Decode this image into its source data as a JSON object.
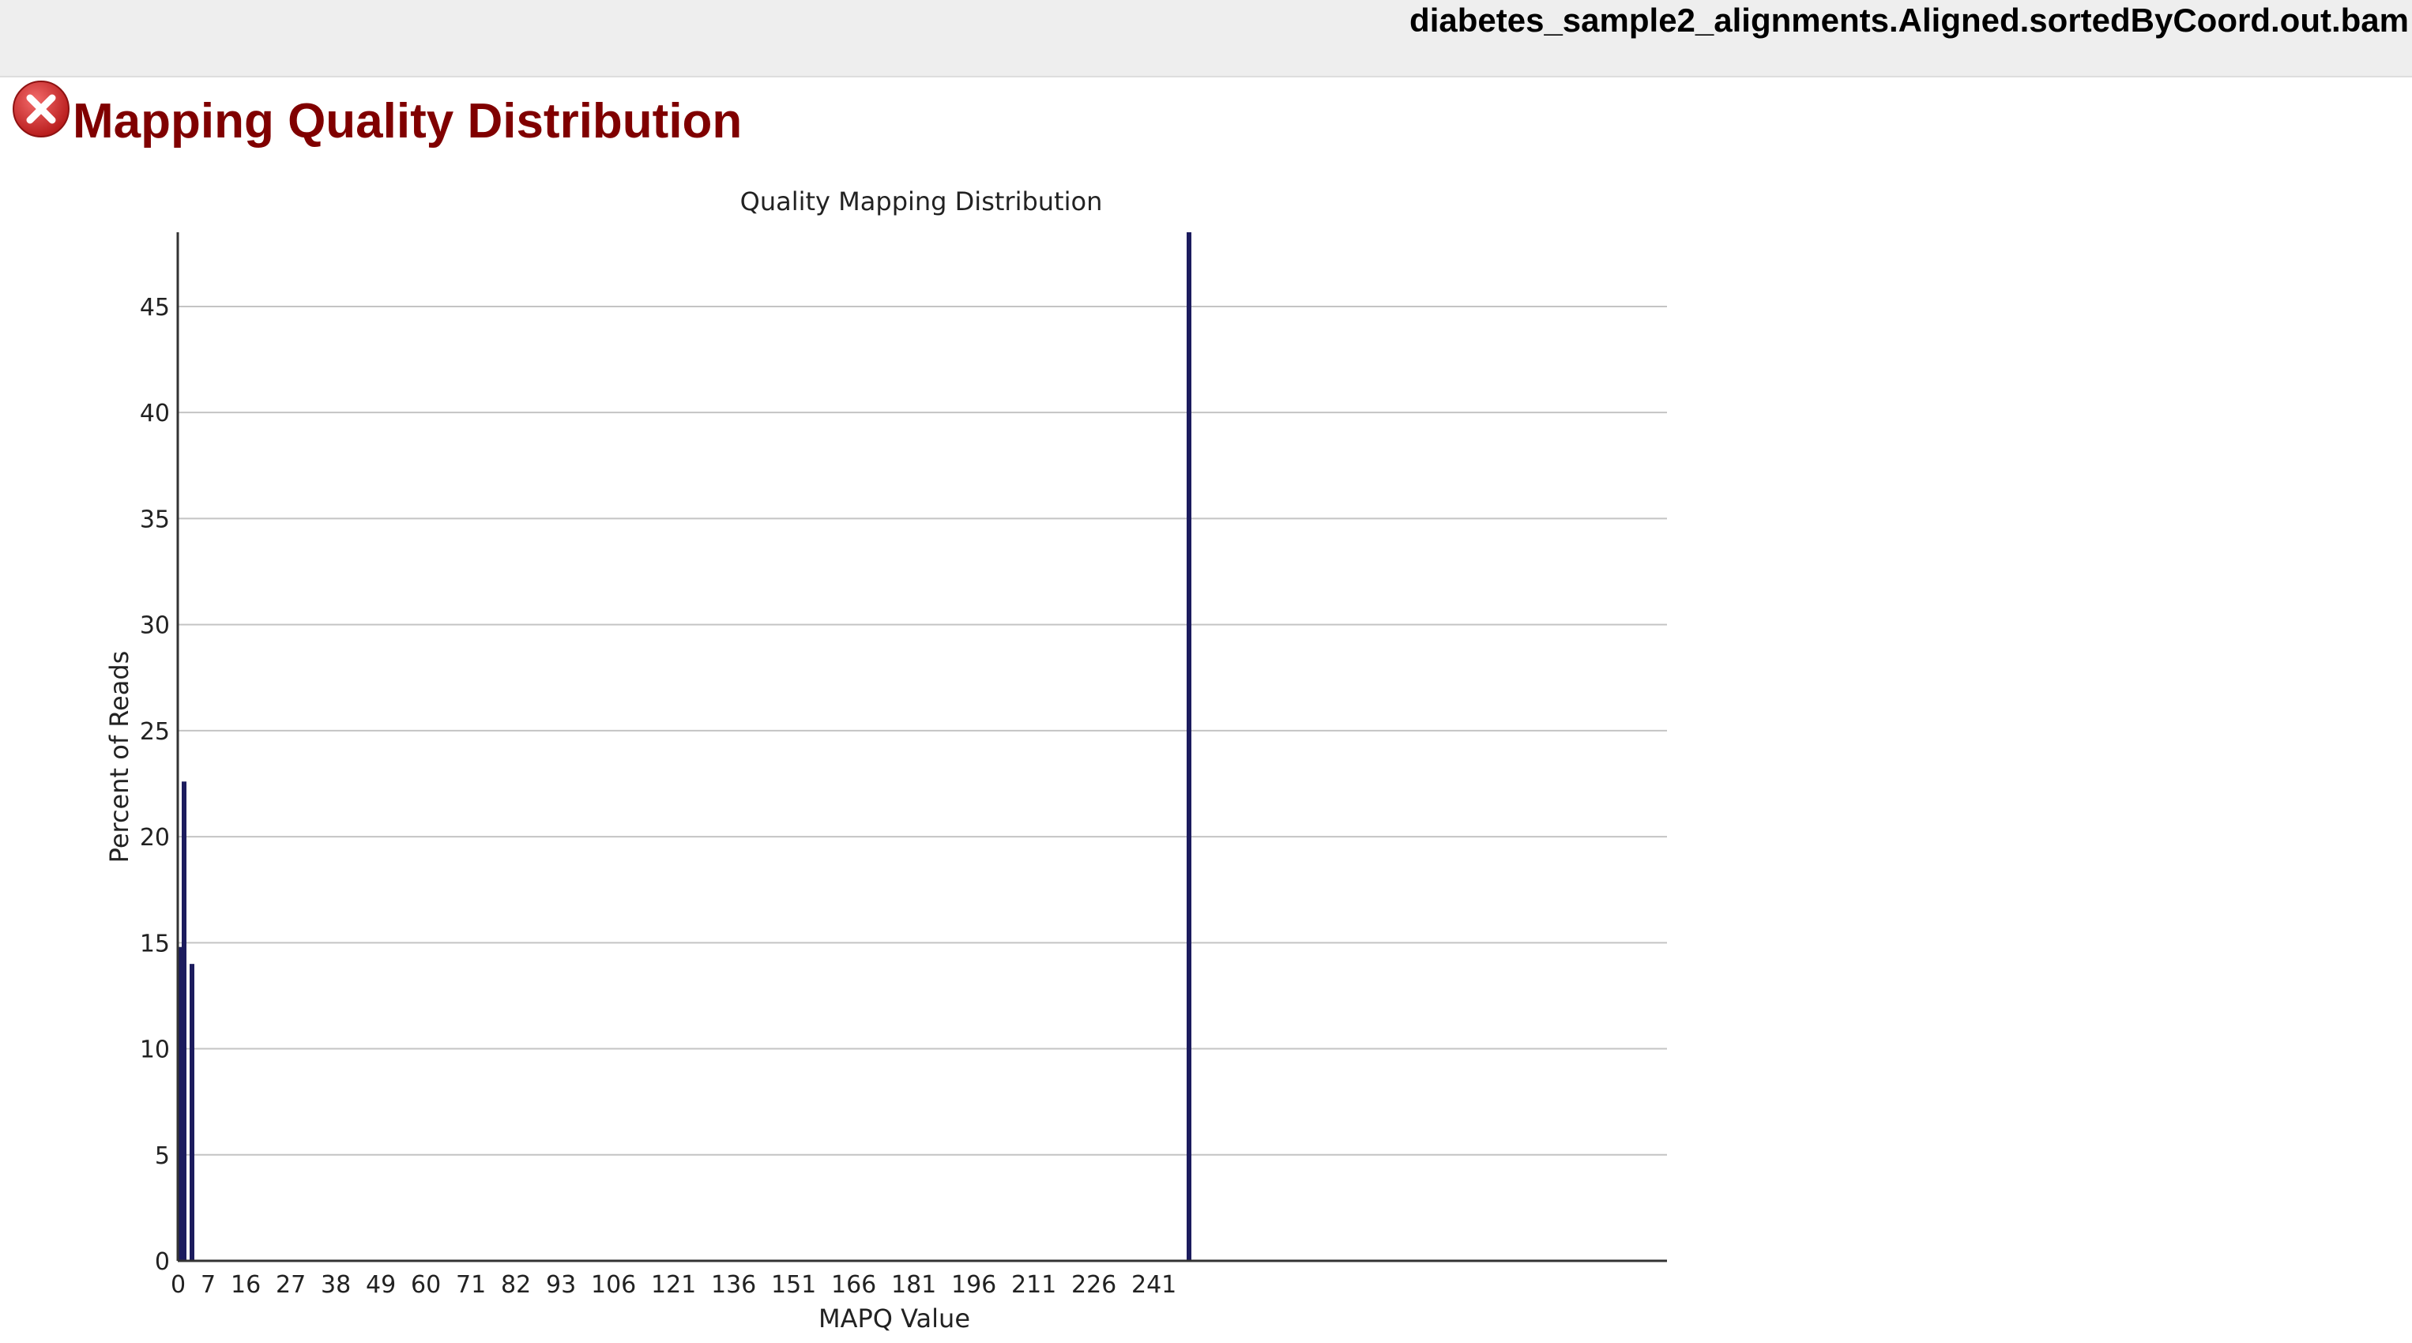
{
  "header": {
    "filename": "diabetes_sample2_alignments.Aligned.sortedByCoord.out.bam"
  },
  "module": {
    "status_icon": "error-icon",
    "title": "Mapping Quality Distribution"
  },
  "colors": {
    "bar": "#1c1c5e",
    "title": "#800000",
    "error": "#d62b2b",
    "grid": "#c4c4c4"
  },
  "chart_data": {
    "type": "bar",
    "title": "Quality Mapping Distribution",
    "xlabel": "MAPQ Value",
    "ylabel": "Percent of Reads",
    "x_tick_labels": [
      "0",
      "7",
      "16",
      "27",
      "38",
      "49",
      "60",
      "71",
      "82",
      "93",
      "106",
      "121",
      "136",
      "151",
      "166",
      "181",
      "196",
      "211",
      "226",
      "241"
    ],
    "y_tick_labels": [
      "0",
      "5",
      "10",
      "15",
      "20",
      "25",
      "30",
      "35",
      "40",
      "45"
    ],
    "ylim": [
      0,
      48.5
    ],
    "grid": true,
    "legend": "none",
    "categories": [
      "0",
      "1",
      "3",
      "255"
    ],
    "values": [
      14.8,
      22.6,
      14.0,
      48.6
    ]
  }
}
